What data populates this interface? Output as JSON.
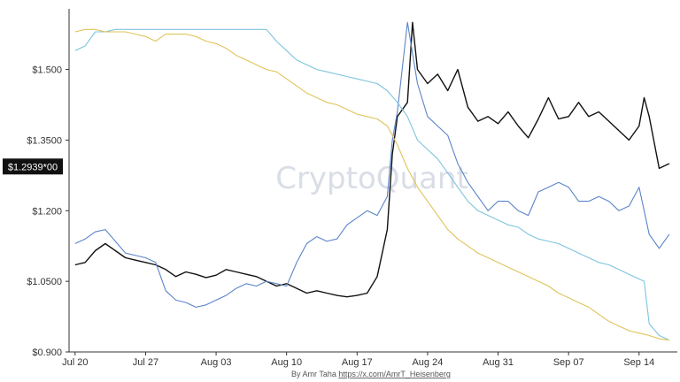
{
  "watermark": "CryptoQuant",
  "credit": {
    "prefix": "By Amr Taha ",
    "link": "https://x.com/AmrT_Heisenberg"
  },
  "chart_data": {
    "type": "line",
    "title": "",
    "xlabel": "",
    "ylabel": "",
    "y_tick_labels": [
      {
        "value": 1.5,
        "label": "$1.500"
      },
      {
        "value": 1.35,
        "label": "$1.3500"
      },
      {
        "value": 1.2,
        "label": "$1.200"
      },
      {
        "value": 1.05,
        "label": "$1.0500"
      },
      {
        "value": 0.9,
        "label": "$0.900"
      }
    ],
    "x_tick_labels": [
      {
        "day": 0,
        "label": "Jul 20"
      },
      {
        "day": 7,
        "label": "Jul 27"
      },
      {
        "day": 14,
        "label": "Aug 03"
      },
      {
        "day": 21,
        "label": "Aug 10"
      },
      {
        "day": 28,
        "label": "Aug 17"
      },
      {
        "day": 35,
        "label": "Aug 24"
      },
      {
        "day": 42,
        "label": "Aug 31"
      },
      {
        "day": 49,
        "label": "Sep 07"
      },
      {
        "day": 56,
        "label": "Sep 14"
      }
    ],
    "current_value_label": {
      "value": 1.2939,
      "label": "$1.2939*00"
    },
    "ylim": [
      0.9,
      1.61
    ],
    "xlim": [
      -0.6,
      59.8
    ],
    "grid": false,
    "legend": "none",
    "series": [
      {
        "color": "#111111",
        "x": [
          0,
          1,
          2,
          3,
          4,
          5,
          6,
          7,
          8,
          9,
          10,
          11,
          12,
          13,
          14,
          15,
          16,
          17,
          18,
          19,
          20,
          21,
          22,
          23,
          24,
          25,
          26,
          27,
          28,
          29,
          30,
          31,
          31.5,
          32,
          33,
          33.5,
          34,
          35,
          36,
          37,
          38,
          39,
          40,
          41,
          42,
          43,
          44,
          45,
          46,
          47,
          48,
          49,
          50,
          51,
          52,
          53,
          54,
          55,
          56,
          56.5,
          57,
          58,
          59
        ],
        "values": [
          1.085,
          1.09,
          1.115,
          1.13,
          1.115,
          1.1,
          1.095,
          1.09,
          1.085,
          1.075,
          1.06,
          1.07,
          1.065,
          1.058,
          1.063,
          1.075,
          1.07,
          1.065,
          1.06,
          1.05,
          1.04,
          1.045,
          1.035,
          1.025,
          1.03,
          1.025,
          1.02,
          1.017,
          1.02,
          1.025,
          1.06,
          1.16,
          1.32,
          1.4,
          1.43,
          1.6,
          1.5,
          1.47,
          1.49,
          1.455,
          1.5,
          1.42,
          1.39,
          1.4,
          1.385,
          1.41,
          1.38,
          1.355,
          1.395,
          1.44,
          1.395,
          1.4,
          1.43,
          1.4,
          1.41,
          1.39,
          1.37,
          1.35,
          1.38,
          1.44,
          1.4,
          1.29,
          1.3
        ]
      },
      {
        "color": "#5a84c8",
        "x": [
          0,
          1,
          2,
          3,
          4,
          5,
          6,
          7,
          8,
          9,
          10,
          11,
          12,
          13,
          14,
          15,
          16,
          17,
          18,
          19,
          20,
          21,
          22,
          23,
          24,
          25,
          26,
          27,
          28,
          29,
          30,
          31,
          31.5,
          32,
          33,
          34,
          35,
          36,
          37,
          38,
          39,
          40,
          41,
          42,
          43,
          44,
          45,
          46,
          47,
          48,
          49,
          50,
          51,
          52,
          53,
          54,
          55,
          56,
          56.5,
          57,
          58,
          59
        ],
        "values": [
          1.13,
          1.14,
          1.155,
          1.16,
          1.135,
          1.11,
          1.105,
          1.1,
          1.09,
          1.03,
          1.01,
          1.005,
          0.995,
          1.0,
          1.01,
          1.02,
          1.035,
          1.045,
          1.04,
          1.05,
          1.045,
          1.04,
          1.09,
          1.13,
          1.145,
          1.135,
          1.14,
          1.17,
          1.185,
          1.2,
          1.19,
          1.23,
          1.35,
          1.41,
          1.6,
          1.47,
          1.4,
          1.38,
          1.36,
          1.3,
          1.26,
          1.23,
          1.2,
          1.22,
          1.22,
          1.2,
          1.19,
          1.24,
          1.25,
          1.26,
          1.25,
          1.22,
          1.22,
          1.23,
          1.22,
          1.2,
          1.21,
          1.25,
          1.2,
          1.15,
          1.12,
          1.15
        ]
      },
      {
        "color": "#7dc4dd",
        "x": [
          0,
          1,
          2,
          3,
          4,
          5,
          6,
          7,
          8,
          9,
          10,
          11,
          12,
          13,
          14,
          15,
          16,
          17,
          18,
          19,
          20,
          21,
          22,
          23,
          24,
          25,
          26,
          27,
          28,
          29,
          30,
          31,
          32,
          33,
          34,
          35,
          36,
          37,
          38,
          39,
          40,
          41,
          42,
          43,
          44,
          45,
          46,
          47,
          48,
          49,
          50,
          51,
          52,
          53,
          54,
          55,
          56,
          56.5,
          57,
          58,
          59
        ],
        "values": [
          1.54,
          1.55,
          1.58,
          1.58,
          1.585,
          1.585,
          1.585,
          1.585,
          1.585,
          1.585,
          1.585,
          1.585,
          1.585,
          1.585,
          1.585,
          1.585,
          1.585,
          1.585,
          1.585,
          1.585,
          1.56,
          1.54,
          1.52,
          1.51,
          1.5,
          1.495,
          1.49,
          1.485,
          1.48,
          1.475,
          1.47,
          1.455,
          1.43,
          1.4,
          1.35,
          1.33,
          1.31,
          1.28,
          1.25,
          1.22,
          1.2,
          1.19,
          1.18,
          1.17,
          1.165,
          1.15,
          1.14,
          1.135,
          1.13,
          1.12,
          1.11,
          1.1,
          1.09,
          1.085,
          1.075,
          1.065,
          1.055,
          1.05,
          0.96,
          0.935,
          0.925
        ]
      },
      {
        "color": "#e0c35a",
        "x": [
          0,
          1,
          2,
          3,
          4,
          5,
          6,
          7,
          8,
          9,
          10,
          11,
          12,
          13,
          14,
          15,
          16,
          17,
          18,
          19,
          20,
          21,
          22,
          23,
          24,
          25,
          26,
          27,
          28,
          29,
          30,
          31,
          32,
          33,
          34,
          35,
          36,
          37,
          38,
          39,
          40,
          41,
          42,
          43,
          44,
          45,
          46,
          47,
          48,
          49,
          50,
          51,
          52,
          53,
          54,
          55,
          56,
          57,
          58,
          59
        ],
        "values": [
          1.58,
          1.585,
          1.585,
          1.58,
          1.58,
          1.58,
          1.575,
          1.57,
          1.56,
          1.575,
          1.575,
          1.575,
          1.57,
          1.56,
          1.555,
          1.545,
          1.53,
          1.52,
          1.51,
          1.5,
          1.495,
          1.48,
          1.465,
          1.45,
          1.44,
          1.43,
          1.425,
          1.415,
          1.405,
          1.4,
          1.395,
          1.38,
          1.34,
          1.29,
          1.25,
          1.22,
          1.19,
          1.16,
          1.14,
          1.125,
          1.11,
          1.1,
          1.09,
          1.08,
          1.07,
          1.06,
          1.05,
          1.04,
          1.025,
          1.015,
          1.005,
          0.995,
          0.98,
          0.965,
          0.955,
          0.945,
          0.94,
          0.935,
          0.928,
          0.925
        ]
      }
    ]
  }
}
